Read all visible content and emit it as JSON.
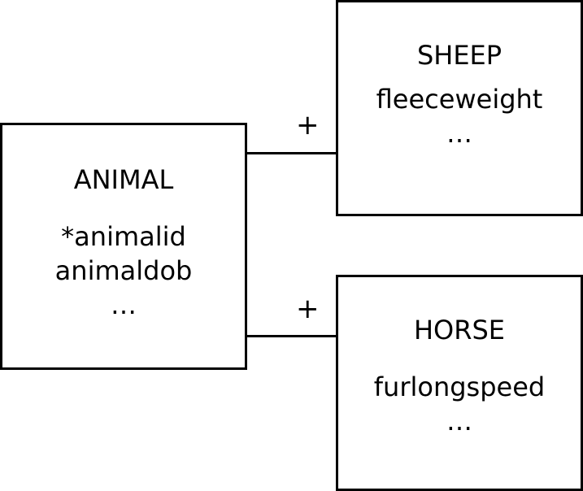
{
  "animal": {
    "title": "ANIMAL",
    "attrs": [
      "*animalid",
      "animaldob",
      "…"
    ]
  },
  "sheep": {
    "title": "SHEEP",
    "attrs": [
      "fleeceweight",
      "…"
    ]
  },
  "horse": {
    "title": "HORSE",
    "attrs": [
      "furlongspeed",
      "…"
    ]
  },
  "connectors": {
    "sheep_label": "+",
    "horse_label": "+"
  }
}
